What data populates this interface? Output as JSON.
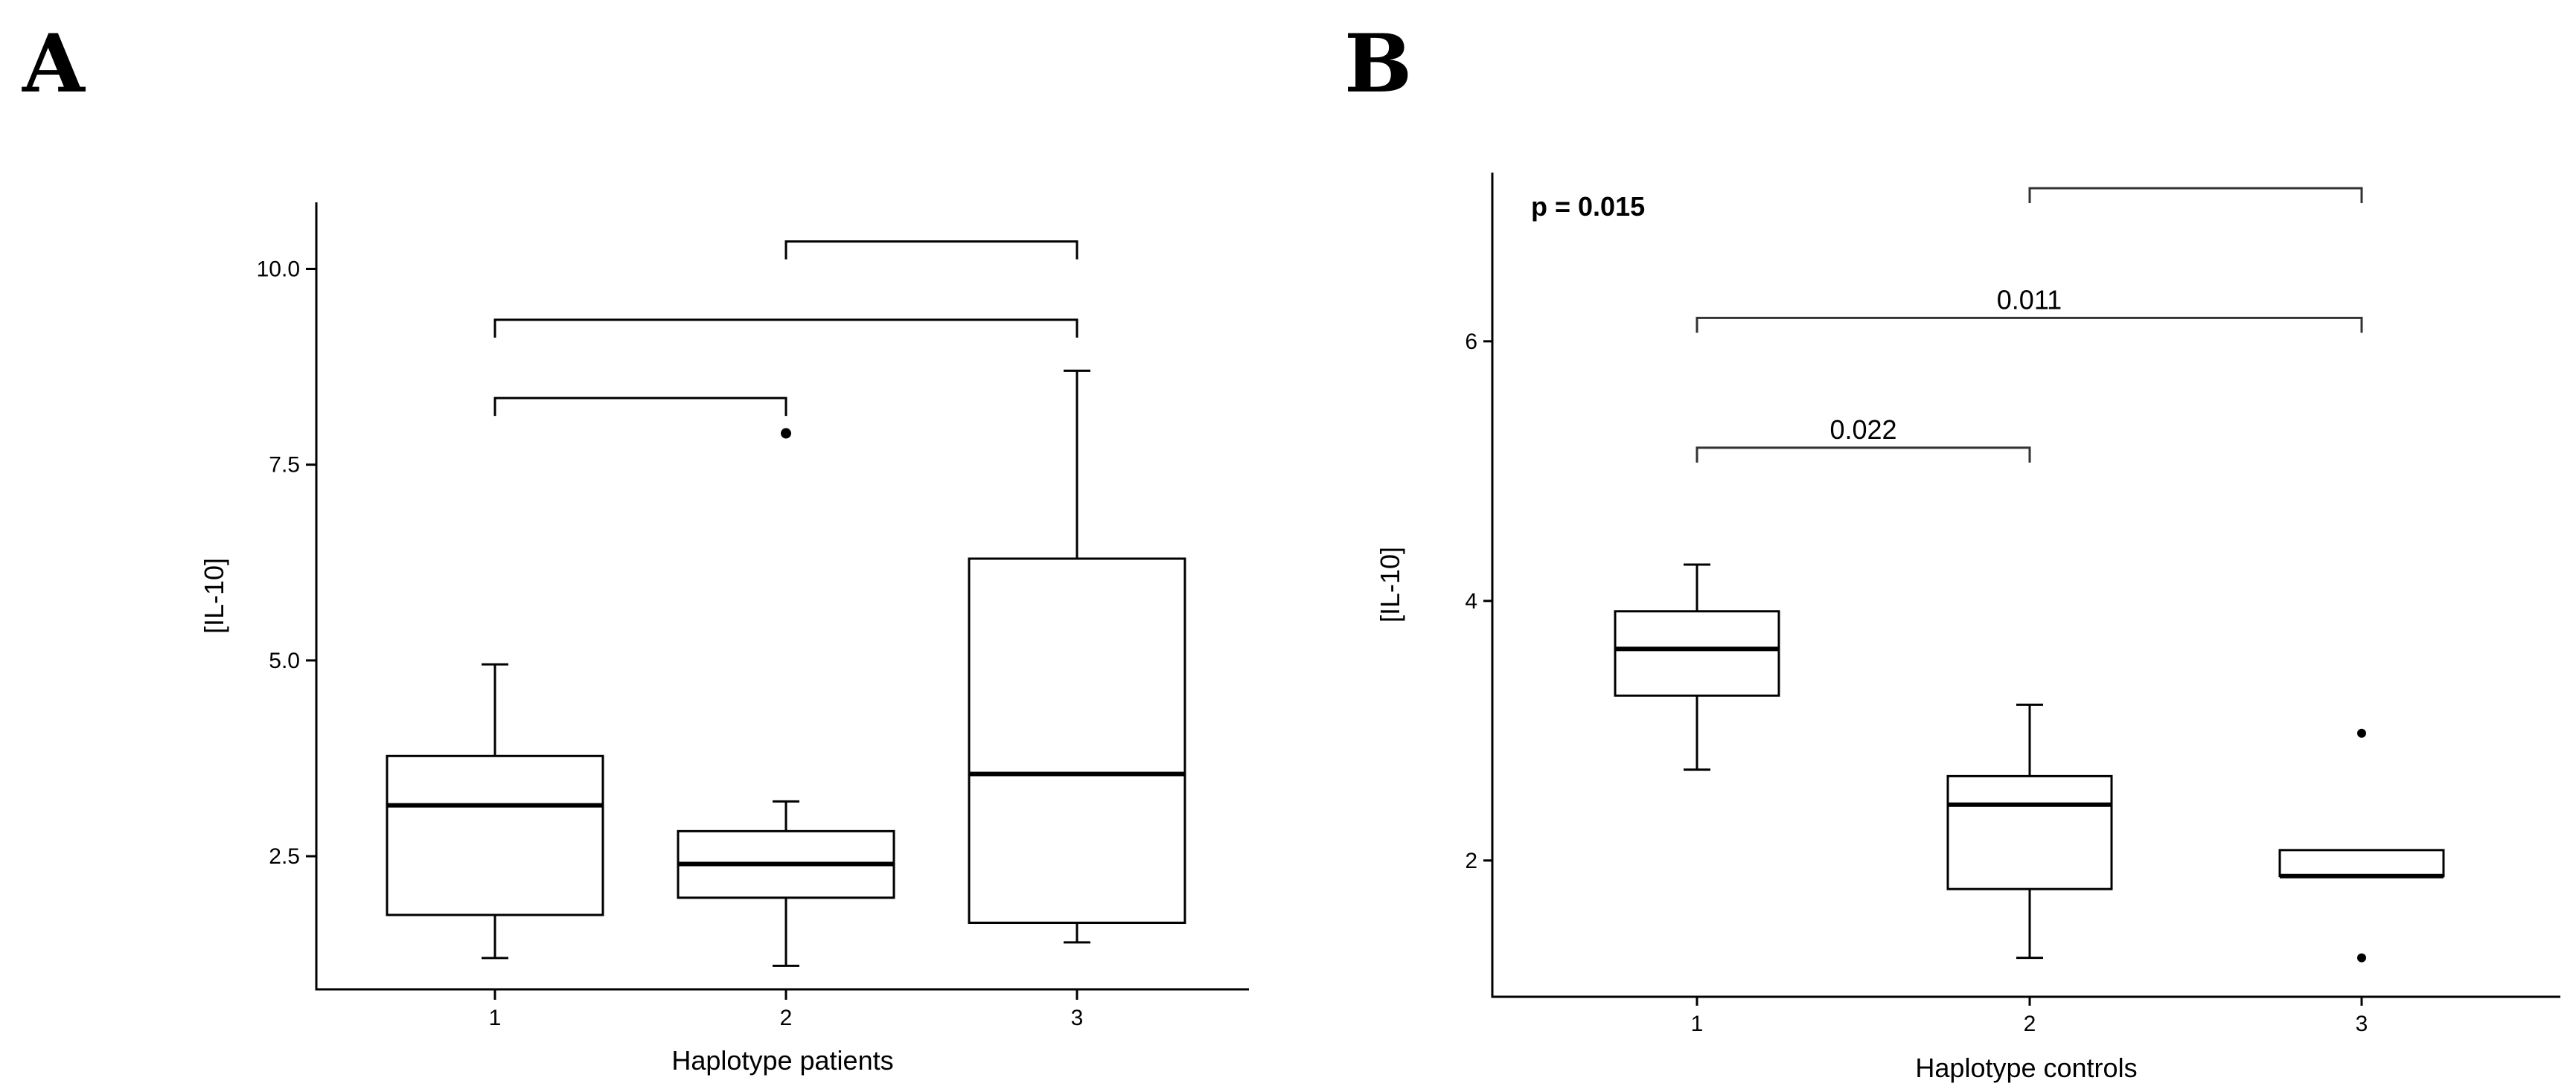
{
  "panels": [
    {
      "letter": "A"
    },
    {
      "letter": "B"
    }
  ],
  "chart_data": [
    {
      "type": "box",
      "panel": "A",
      "title": "",
      "xlabel": "Haplotype patients",
      "ylabel": "[IL-10]",
      "categories": [
        "1",
        "2",
        "3"
      ],
      "ylim": [
        0.8,
        10.85
      ],
      "y_ticks": [
        2.5,
        5.0,
        7.5,
        10.0
      ],
      "y_tick_labels": [
        "2.5",
        "5.0",
        "7.5",
        "10.0"
      ],
      "boxes": [
        {
          "category": "1",
          "whisker_low": 1.2,
          "q1": 1.75,
          "median": 3.15,
          "q3": 3.78,
          "whisker_high": 4.95,
          "outliers": []
        },
        {
          "category": "2",
          "whisker_low": 1.1,
          "q1": 1.97,
          "median": 2.4,
          "q3": 2.82,
          "whisker_high": 3.2,
          "outliers": [
            7.9
          ]
        },
        {
          "category": "3",
          "whisker_low": 1.4,
          "q1": 1.65,
          "median": 3.55,
          "q3": 6.3,
          "whisker_high": 8.7,
          "outliers": []
        }
      ],
      "comparisons": [
        {
          "from": "1",
          "to": "2",
          "y": 8.35,
          "label": ""
        },
        {
          "from": "1",
          "to": "3",
          "y": 9.35,
          "label": ""
        },
        {
          "from": "2",
          "to": "3",
          "y": 10.35,
          "label": ""
        }
      ],
      "grid": false,
      "legend": "none"
    },
    {
      "type": "box",
      "panel": "B",
      "title": "",
      "xlabel": "Haplotype controls",
      "ylabel": "[IL-10]",
      "categories": [
        "1",
        "2",
        "3"
      ],
      "ylim": [
        0.95,
        7.3
      ],
      "y_ticks": [
        2,
        4,
        6
      ],
      "y_tick_labels": [
        "2",
        "4",
        "6"
      ],
      "overall_p_label": "p = 0.015",
      "boxes": [
        {
          "category": "1",
          "whisker_low": 2.7,
          "q1": 3.27,
          "median": 3.63,
          "q3": 3.92,
          "whisker_high": 4.28,
          "outliers": []
        },
        {
          "category": "2",
          "whisker_low": 1.25,
          "q1": 1.78,
          "median": 2.43,
          "q3": 2.65,
          "whisker_high": 3.2,
          "outliers": []
        },
        {
          "category": "3",
          "whisker_low": null,
          "q1": 1.88,
          "median": 1.88,
          "q3": 2.08,
          "whisker_high": null,
          "outliers": [
            2.98,
            1.25
          ]
        }
      ],
      "comparisons": [
        {
          "from": "1",
          "to": "2",
          "y": 5.18,
          "label": "0.022"
        },
        {
          "from": "1",
          "to": "3",
          "y": 6.18,
          "label": "0.011"
        },
        {
          "from": "2",
          "to": "3",
          "y": 7.18,
          "label": ""
        }
      ],
      "grid": false,
      "legend": "none"
    }
  ]
}
